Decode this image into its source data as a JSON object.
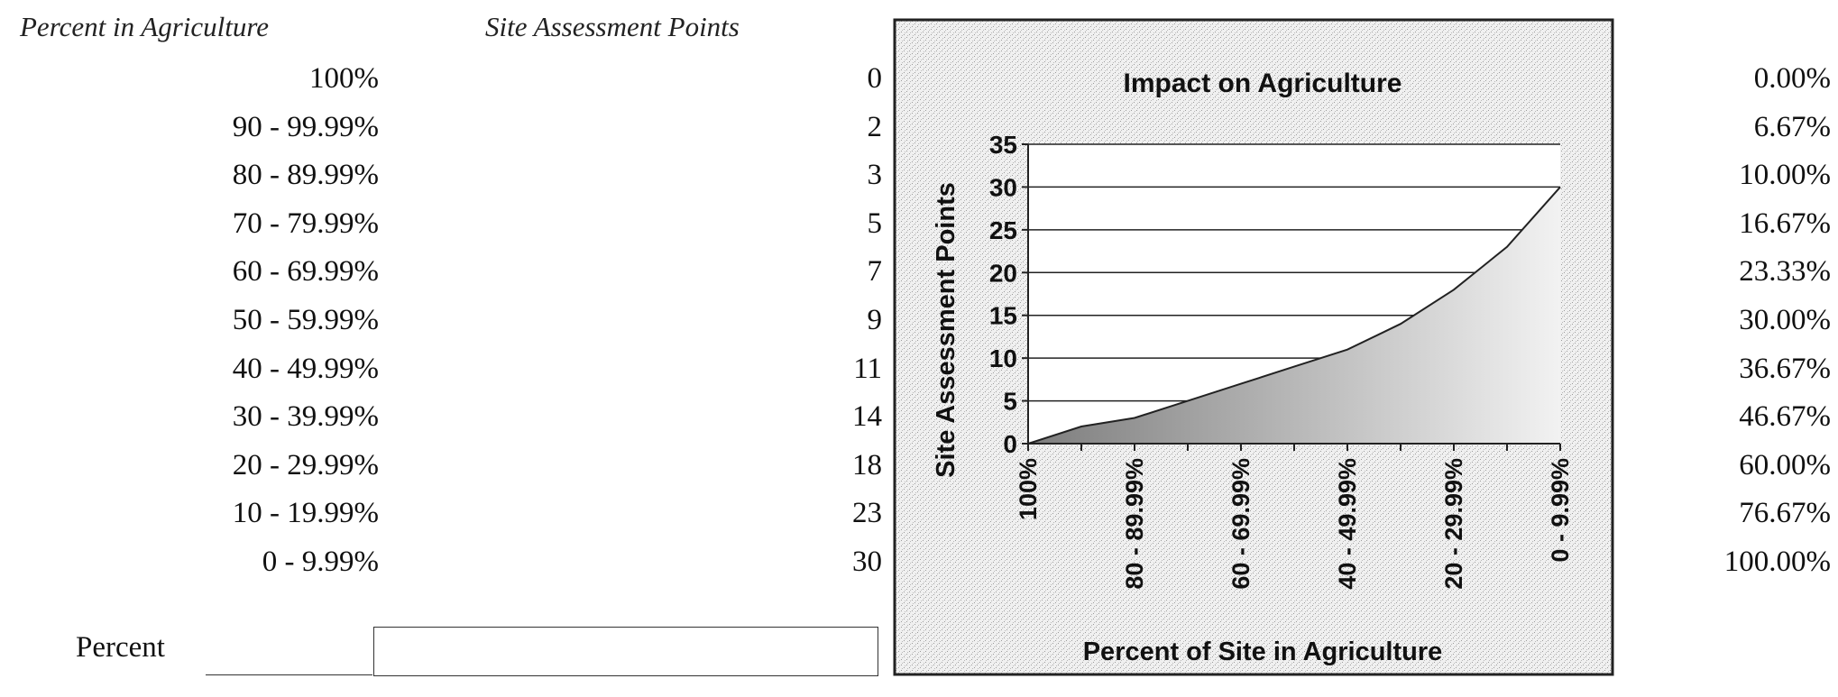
{
  "headers": {
    "percent_in_agriculture": "Percent in Agriculture",
    "site_assessment_points": "Site Assessment Points"
  },
  "rows": [
    {
      "range": "100%",
      "points": "0",
      "percent": "0.00%"
    },
    {
      "range": "90 - 99.99%",
      "points": "2",
      "percent": "6.67%"
    },
    {
      "range": "80 - 89.99%",
      "points": "3",
      "percent": "10.00%"
    },
    {
      "range": "70 - 79.99%",
      "points": "5",
      "percent": "16.67%"
    },
    {
      "range": "60 - 69.99%",
      "points": "7",
      "percent": "23.33%"
    },
    {
      "range": "50 - 59.99%",
      "points": "9",
      "percent": "30.00%"
    },
    {
      "range": "40 - 49.99%",
      "points": "11",
      "percent": "36.67%"
    },
    {
      "range": "30 - 39.99%",
      "points": "14",
      "percent": "46.67%"
    },
    {
      "range": "20 - 29.99%",
      "points": "18",
      "percent": "60.00%"
    },
    {
      "range": "10 - 19.99%",
      "points": "23",
      "percent": "76.67%"
    },
    {
      "range": "0 - 9.99%",
      "points": "30",
      "percent": "100.00%"
    }
  ],
  "input": {
    "label": "Percent",
    "value": ""
  },
  "chart_data": {
    "type": "area",
    "title": "Impact on Agriculture",
    "xlabel": "Percent of Site in Agriculture",
    "ylabel": "Site Assessment Points",
    "categories": [
      "100%",
      "90 - 99.99%",
      "80 - 89.99%",
      "70 - 79.99%",
      "60 - 69.99%",
      "50 - 59.99%",
      "40 - 49.99%",
      "30 - 39.99%",
      "20 - 29.99%",
      "10 - 19.99%",
      "0 - 9.99%"
    ],
    "tick_labels_shown": [
      "100%",
      "80 - 89.99%",
      "60 - 69.99%",
      "40 - 49.99%",
      "20 - 29.99%",
      "0 - 9.99%"
    ],
    "series": [
      {
        "values": [
          0,
          2,
          3,
          5,
          7,
          9,
          11,
          14,
          18,
          23,
          30
        ]
      }
    ],
    "ylim": [
      0,
      35
    ],
    "yticks": [
      0,
      5,
      10,
      15,
      20,
      25,
      30,
      35
    ],
    "grid": true,
    "colors": {
      "frame_background": "#dcdcdc",
      "plot_background": "#ffffff",
      "area_fill_dark": "#8c8c8c",
      "area_fill_light": "#ececec",
      "line": "#222222"
    }
  }
}
